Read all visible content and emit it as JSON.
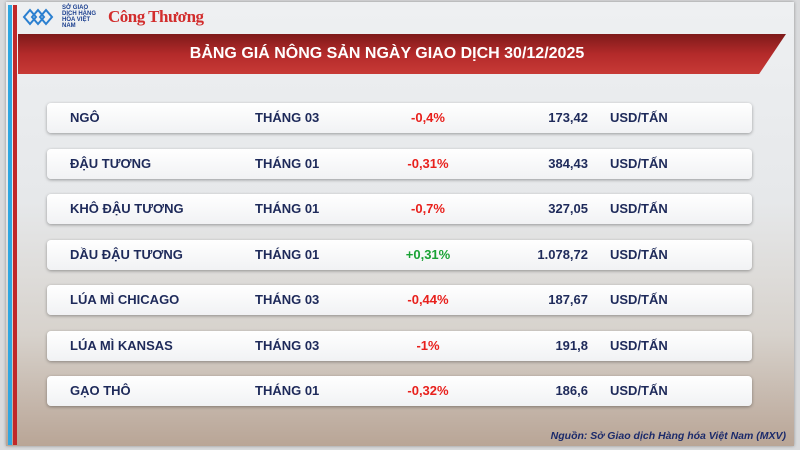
{
  "header": {
    "logo_text": "SỞ GIAO DỊCH HÀNG HÓA VIỆT NAM",
    "brand": "Công Thương",
    "title": "BẢNG GIÁ NÔNG SẢN NGÀY GIAO DỊCH 30/12/2025"
  },
  "colors": {
    "negative": "#e8201c",
    "positive": "#1aa235",
    "banner": "#b32a2a",
    "text": "#1e2a5a"
  },
  "rows": [
    {
      "name": "NGÔ",
      "month": "THÁNG 03",
      "change": "-0,4%",
      "price": "173,42",
      "unit": "USD/TẤN",
      "direction": "down"
    },
    {
      "name": "ĐẬU TƯƠNG",
      "month": "THÁNG 01",
      "change": "-0,31%",
      "price": "384,43",
      "unit": "USD/TẤN",
      "direction": "down"
    },
    {
      "name": "KHÔ ĐẬU TƯƠNG",
      "month": "THÁNG 01",
      "change": "-0,7%",
      "price": "327,05",
      "unit": "USD/TẤN",
      "direction": "down"
    },
    {
      "name": "DẦU ĐẬU TƯƠNG",
      "month": "THÁNG 01",
      "change": "+0,31%",
      "price": "1.078,72",
      "unit": "USD/TẤN",
      "direction": "up"
    },
    {
      "name": "LÚA MÌ CHICAGO",
      "month": "THÁNG 03",
      "change": "-0,44%",
      "price": "187,67",
      "unit": "USD/TẤN",
      "direction": "down"
    },
    {
      "name": "LÚA MÌ KANSAS",
      "month": "THÁNG 03",
      "change": "-1%",
      "price": "191,8",
      "unit": "USD/TẤN",
      "direction": "down"
    },
    {
      "name": "GẠO THÔ",
      "month": "THÁNG 01",
      "change": "-0,32%",
      "price": "186,6",
      "unit": "USD/TẤN",
      "direction": "down"
    }
  ],
  "footer": {
    "source": "Nguồn: Sở Giao dịch Hàng hóa Việt Nam (MXV)"
  }
}
